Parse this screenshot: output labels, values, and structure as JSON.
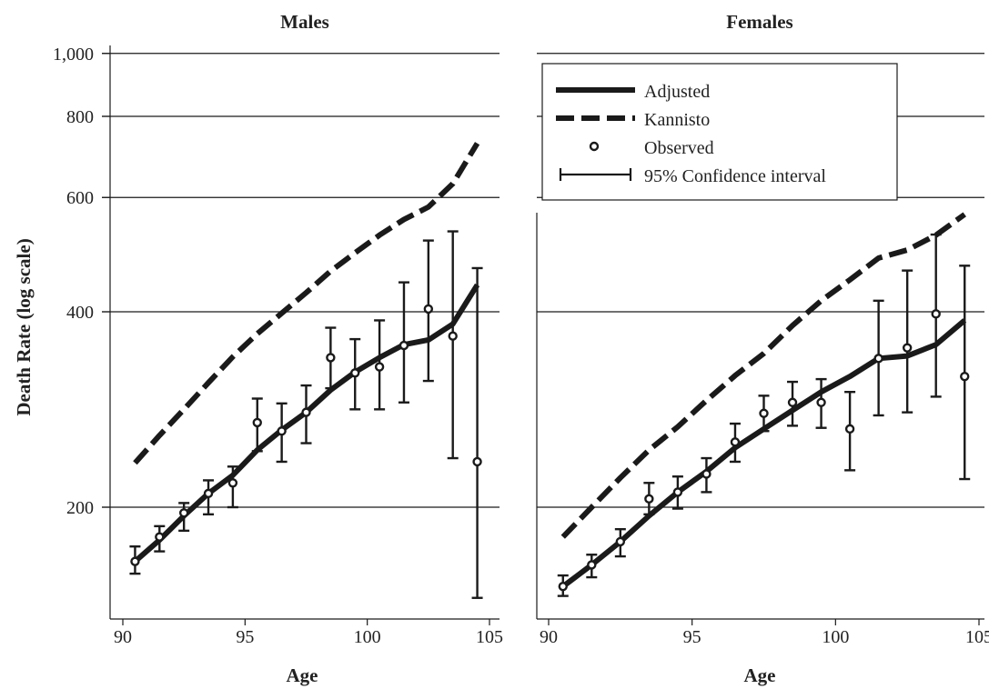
{
  "chart_data": [
    {
      "type": "line",
      "title": "Males",
      "xlabel": "Age",
      "ylabel": "Death Rate (log scale)",
      "y_scale": "log",
      "xlim": [
        89.8,
        105.6
      ],
      "ylim": [
        140,
        1000
      ],
      "x_ticks": [
        "90",
        "95",
        "100",
        "105"
      ],
      "y_ticks": [
        "200",
        "400",
        "600",
        "800",
        "1,000"
      ],
      "grid": "horizontal",
      "series": [
        {
          "name": "Adjusted",
          "x": [
            90.5,
            91.5,
            92.5,
            93.5,
            94.5,
            95.5,
            96.5,
            97.5,
            98.5,
            99.5,
            100.5,
            101.5,
            102.5,
            103.5,
            104.5
          ],
          "y": [
            165,
            178,
            194,
            210,
            224,
            245,
            263,
            280,
            303,
            323,
            340,
            356,
            362,
            383,
            440
          ]
        },
        {
          "name": "Kannisto",
          "x": [
            90.5,
            91.5,
            92.5,
            93.5,
            94.5,
            95.5,
            96.5,
            97.5,
            98.5,
            99.5,
            100.5,
            101.5,
            102.5,
            103.5,
            104.5
          ],
          "y": [
            234,
            258,
            283,
            311,
            341,
            370,
            398,
            428,
            462,
            493,
            525,
            555,
            580,
            630,
            727
          ]
        },
        {
          "name": "Observed",
          "x": [
            90.5,
            91.5,
            92.5,
            93.5,
            94.5,
            95.5,
            96.5,
            97.5,
            98.5,
            99.5,
            100.5,
            101.5,
            102.5,
            103.5,
            104.5
          ],
          "y": [
            165,
            180,
            196,
            210,
            218,
            270,
            262,
            280,
            340,
            322,
            329,
            355,
            404,
            367,
            235
          ],
          "ci_low": [
            158,
            171,
            184,
            195,
            200,
            244,
            235,
            251,
            305,
            283,
            283,
            290,
            313,
            238,
            145
          ],
          "ci_high": [
            174,
            187,
            203,
            220,
            231,
            294,
            289,
            308,
            378,
            363,
            388,
            444,
            515,
            532,
            467
          ]
        }
      ]
    },
    {
      "type": "line",
      "title": "Females",
      "xlabel": "Age",
      "y_scale": "log",
      "xlim": [
        89.8,
        105.6
      ],
      "ylim": [
        140,
        1000
      ],
      "x_ticks": [
        "90",
        "95",
        "100",
        "105"
      ],
      "series": [
        {
          "name": "Adjusted",
          "x": [
            90.5,
            91.5,
            92.5,
            93.5,
            94.5,
            95.5,
            96.5,
            97.5,
            98.5,
            99.5,
            100.5,
            101.5,
            102.5,
            103.5,
            104.5
          ],
          "y": [
            151,
            163,
            177,
            194,
            211,
            227,
            247,
            264,
            282,
            301,
            318,
            339,
            342,
            356,
            388
          ]
        },
        {
          "name": "Kannisto",
          "x": [
            90.5,
            91.5,
            92.5,
            93.5,
            94.5,
            95.5,
            96.5,
            97.5,
            98.5,
            99.5,
            100.5,
            101.5,
            102.5,
            103.5,
            104.5
          ],
          "y": [
            180,
            200,
            222,
            245,
            266,
            292,
            319,
            345,
            381,
            416,
            448,
            484,
            498,
            525,
            565
          ]
        },
        {
          "name": "Observed",
          "x": [
            90.5,
            91.5,
            92.5,
            93.5,
            94.5,
            95.5,
            96.5,
            97.5,
            98.5,
            99.5,
            100.5,
            101.5,
            102.5,
            103.5,
            104.5
          ],
          "y": [
            151,
            163,
            177,
            206,
            211,
            225,
            252,
            279,
            290,
            290,
            264,
            339,
            352,
            397,
            318
          ],
          "ci_low": [
            146,
            156,
            168,
            195,
            199,
            211,
            235,
            262,
            267,
            265,
            228,
            277,
            280,
            296,
            221
          ],
          "ci_high": [
            157,
            169,
            185,
            218,
            223,
            238,
            269,
            297,
            312,
            315,
            301,
            416,
            463,
            526,
            471
          ]
        }
      ]
    }
  ],
  "legend": {
    "entries": [
      "Adjusted",
      "Kannisto",
      "Observed",
      "95% Confidence interval"
    ]
  },
  "colors": {
    "line": "#1a1a1a",
    "grid": "#1a1a1a",
    "background": "#ffffff"
  }
}
